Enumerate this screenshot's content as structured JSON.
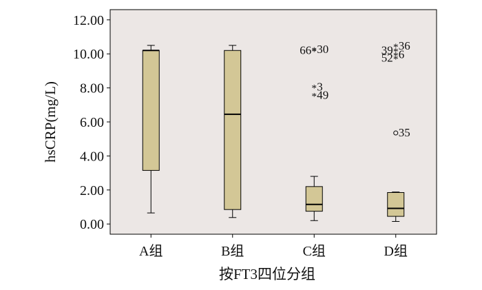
{
  "chart_data": {
    "type": "box",
    "xlabel": "按FT3四位分组",
    "ylabel": "hsCRP(mg/L)",
    "ylim": [
      -0.6,
      12.6
    ],
    "yticks": [
      0,
      2,
      4,
      6,
      8,
      10,
      12
    ],
    "ytick_labels": [
      "0.00",
      "2.00",
      "4.00",
      "6.00",
      "8.00",
      "10.00",
      "12.00"
    ],
    "categories": [
      "A组",
      "B组",
      "C组",
      "D组"
    ],
    "box_color": "#d3c796",
    "plot_background": "#ece7e5",
    "boxes": [
      {
        "category": "A组",
        "whisker_low": 0.65,
        "q1": 3.15,
        "median": 10.2,
        "q3": 10.2,
        "whisker_high": 10.5,
        "outliers": []
      },
      {
        "category": "B组",
        "whisker_low": 0.38,
        "q1": 0.85,
        "median": 6.45,
        "q3": 10.2,
        "whisker_high": 10.5,
        "outliers": []
      },
      {
        "category": "C组",
        "whisker_low": 0.2,
        "q1": 0.75,
        "median": 1.15,
        "q3": 2.2,
        "whisker_high": 2.8,
        "outliers": [
          {
            "value": 10.2,
            "label": "66",
            "marker": "*",
            "label_side": "left"
          },
          {
            "value": 10.25,
            "label": "30",
            "marker": "*",
            "label_side": "right"
          },
          {
            "value": 8.05,
            "label": "3",
            "marker": "*",
            "label_side": "right"
          },
          {
            "value": 7.55,
            "label": "49",
            "marker": "*",
            "label_side": "right"
          }
        ]
      },
      {
        "category": "D组",
        "whisker_low": 0.15,
        "q1": 0.45,
        "median": 0.92,
        "q3": 1.85,
        "whisker_high": 1.88,
        "outliers": [
          {
            "value": 10.45,
            "label": "36",
            "marker": "*",
            "label_side": "right"
          },
          {
            "value": 10.2,
            "label": "39",
            "marker": "*",
            "label_side": "left"
          },
          {
            "value": 9.95,
            "label": "6",
            "marker": "*",
            "label_side": "right"
          },
          {
            "value": 9.75,
            "label": "52",
            "marker": "*",
            "label_side": "left"
          },
          {
            "value": 5.35,
            "label": "35",
            "marker": "o",
            "label_side": "right"
          }
        ]
      }
    ]
  }
}
